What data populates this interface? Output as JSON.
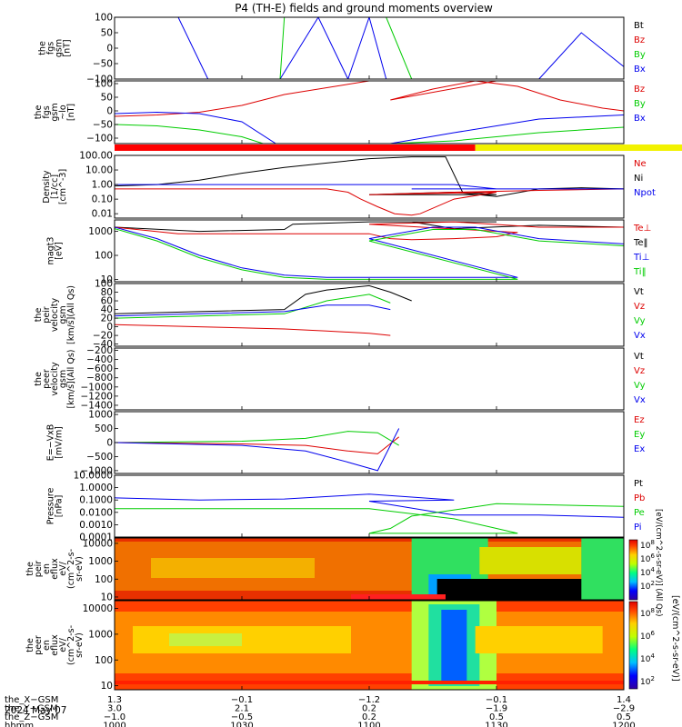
{
  "title": "P4 (TH-E) fields and ground moments overview",
  "date_label": "2024 May 07",
  "colors": {
    "black": "#000000",
    "red": "#dd0000",
    "green": "#00cc00",
    "blue": "#0000ee",
    "yellow": "#f2f200"
  },
  "panels": [
    {
      "id": "fgs_gsm",
      "ylabel": [
        "the",
        "fgs",
        "gsm",
        "[nT]"
      ],
      "yticks": [
        "100",
        "50",
        "0",
        "−50",
        "−100"
      ],
      "legend": [
        [
          "Bt",
          "black"
        ],
        [
          "Bz",
          "red"
        ],
        [
          "By",
          "green"
        ],
        [
          "Bx",
          "blue"
        ]
      ]
    },
    {
      "id": "fgs_gsm_lo",
      "ylabel": [
        "the",
        "fgs",
        "gsm",
        "~lo",
        "[nT]"
      ],
      "yticks": [
        "100",
        "50",
        "0",
        "−50",
        "−100"
      ],
      "legend": [
        [
          "Bz",
          "red"
        ],
        [
          "By",
          "green"
        ],
        [
          "Bx",
          "blue"
        ]
      ]
    },
    {
      "id": "density",
      "ylabel": [
        "Density",
        "[1/cc]",
        "[cm^-3]"
      ],
      "yticks": [
        "100.00",
        "10.00",
        "1.00",
        "0.10",
        "0.01"
      ],
      "legend": [
        [
          "Ne",
          "red"
        ],
        [
          "Ni",
          "black"
        ],
        [
          "Npot",
          "blue"
        ]
      ]
    },
    {
      "id": "temperature",
      "ylabel": [
        "magt3",
        "[eV]"
      ],
      "yticks": [
        "1000",
        "100",
        "10"
      ],
      "legend": [
        [
          "Te⊥",
          "red"
        ],
        [
          "Te‖",
          "black"
        ],
        [
          "Ti⊥",
          "blue"
        ],
        [
          "Ti‖",
          "green"
        ]
      ]
    },
    {
      "id": "peir_velocity",
      "ylabel": [
        "the",
        "peir",
        "velocity",
        "gsm",
        "[km/s](All Qs)"
      ],
      "yticks": [
        "100",
        "80",
        "60",
        "40",
        "20",
        "0",
        "−20",
        "−40"
      ],
      "legend": [
        [
          "Vt",
          "black"
        ],
        [
          "Vz",
          "red"
        ],
        [
          "Vy",
          "green"
        ],
        [
          "Vx",
          "blue"
        ]
      ]
    },
    {
      "id": "peer_velocity",
      "ylabel": [
        "the",
        "peer",
        "velocity",
        "gsm",
        "[km/s](All Qs)"
      ],
      "yticks": [
        "−200",
        "−400",
        "−600",
        "−800",
        "−1000",
        "−1200",
        "−1400"
      ],
      "legend": [
        [
          "Vt",
          "black"
        ],
        [
          "Vz",
          "red"
        ],
        [
          "Vy",
          "green"
        ],
        [
          "Vx",
          "blue"
        ]
      ]
    },
    {
      "id": "efield",
      "ylabel": [
        "E=−VxB",
        "[mV/m]"
      ],
      "yticks": [
        "1000",
        "500",
        "0",
        "−500",
        "−1000"
      ],
      "legend": [
        [
          "Ez",
          "red"
        ],
        [
          "Ey",
          "green"
        ],
        [
          "Ex",
          "blue"
        ]
      ]
    },
    {
      "id": "pressure",
      "ylabel": [
        "Pressure",
        "[nPa]"
      ],
      "yticks": [
        "10.0000",
        "1.0000",
        "0.1000",
        "0.0100",
        "0.0010",
        "0.0001"
      ],
      "legend": [
        [
          "Pt",
          "black"
        ],
        [
          "Pb",
          "red"
        ],
        [
          "Pe",
          "green"
        ],
        [
          "Pi",
          "blue"
        ]
      ]
    },
    {
      "id": "peir_eflux",
      "ylabel": [
        "the",
        "peir",
        "en",
        "eflux",
        "eV/",
        "(cm^2-s-",
        "sr-eV)"
      ],
      "yticks": [
        "10000",
        "1000",
        "100",
        "10"
      ],
      "legend": []
    },
    {
      "id": "peer_eflux",
      "ylabel": [
        "the",
        "peer",
        "en",
        "eflux",
        "eV/",
        "(cm^2-s-",
        "sr-eV)"
      ],
      "yticks": [
        "10000",
        "1000",
        "100",
        "10"
      ],
      "legend": []
    }
  ],
  "colorbar_ticks": [
    "10^8",
    "10^6",
    "10^4",
    "10^2"
  ],
  "colorbar_label": "[eV/(cm^2-s-sr-eV)]",
  "colorbar_label_upper": "[eV/(cm^2-s-sr-eV)] (All Qs)",
  "xaxis": {
    "row_labels": [
      "the_X−GSM",
      "the_Y−GSM",
      "the_Z−GSM",
      "hhmm"
    ],
    "columns": [
      [
        "1.3",
        "3.0",
        "−1.0",
        "1000"
      ],
      [
        "−0.1",
        "2.1",
        "−0.5",
        "1030"
      ],
      [
        "−1.2",
        "0.2",
        "0.2",
        "1100"
      ],
      [
        "−0.1",
        "−1.9",
        "0.5",
        "1130"
      ],
      [
        "1.4",
        "−2.9",
        "0.5",
        "1200"
      ]
    ]
  },
  "chart_data": {
    "type": "line",
    "title": "P4 (TH-E) fields and ground moments overview",
    "x": {
      "label": "hhmm",
      "ticks": [
        "1000",
        "1030",
        "1100",
        "1130",
        "1200"
      ],
      "range_hhmm": [
        "1000",
        "1200"
      ]
    },
    "panels": [
      {
        "id": "fgs_gsm",
        "yscale": "linear",
        "ylim": [
          -100,
          100
        ],
        "series": [
          {
            "name": "Bx",
            "x": [
              "1000",
              "1015",
              "1022",
              "1039",
              "1048",
              "1055",
              "1100",
              "1104",
              "1110",
              "1140",
              "1150",
              "1200"
            ],
            "y": [
              100,
              100,
              -100,
              -100,
              100,
              -100,
              100,
              -100,
              -100,
              -100,
              50,
              -60
            ]
          },
          {
            "name": "By",
            "x": [
              "1000",
              "1039",
              "1040",
              "1100",
              "1104",
              "1110"
            ],
            "y": [
              -100,
              -100,
              100,
              100,
              100,
              -100
            ]
          }
        ]
      },
      {
        "id": "fgs_gsm_lo",
        "yscale": "linear",
        "ylim": [
          -120,
          110
        ],
        "series": [
          {
            "name": "Bz",
            "x": [
              "1000",
              "1010",
              "1020",
              "1030",
              "1040",
              "1060",
              "1075",
              "1090",
              "1105",
              "1115",
              "1125",
              "1135",
              "1145",
              "1155",
              "1200"
            ],
            "y": [
              -20,
              -15,
              -5,
              20,
              60,
              110,
              110,
              110,
              40,
              80,
              110,
              90,
              40,
              10,
              0
            ]
          },
          {
            "name": "By",
            "x": [
              "1000",
              "1010",
              "1020",
              "1030",
              "1035",
              "1105",
              "1120",
              "1140",
              "1160",
              "1180",
              "1200"
            ],
            "y": [
              -50,
              -55,
              -70,
              -95,
              -120,
              -120,
              -110,
              -80,
              -60,
              -55,
              -50
            ]
          },
          {
            "name": "Bx",
            "x": [
              "1000",
              "1010",
              "1020",
              "1030",
              "1038",
              "1105",
              "1120",
              "1140",
              "1160",
              "1180",
              "1200"
            ],
            "y": [
              -10,
              -5,
              -10,
              -40,
              -120,
              -120,
              -80,
              -30,
              -15,
              -10,
              -5
            ]
          }
        ]
      },
      {
        "id": "density",
        "yscale": "log",
        "ylim": [
          0.005,
          100
        ],
        "series": [
          {
            "name": "Ni",
            "x": [
              "1000",
              "1010",
              "1020",
              "1030",
              "1040",
              "1050",
              "1060",
              "1070",
              "1078",
              "1082",
              "1090",
              "1100",
              "1110",
              "1120",
              "1130",
              "1140",
              "1150",
              "1160",
              "1170",
              "1180",
              "1190",
              "1200"
            ],
            "y": [
              0.8,
              1,
              2,
              6,
              15,
              30,
              60,
              80,
              80,
              0.3,
              0.2,
              0.2,
              0.25,
              0.3,
              0.15,
              0.5,
              0.6,
              0.5,
              0.4,
              0.4,
              0.5,
              0.6
            ]
          },
          {
            "name": "Ne",
            "x": [
              "1000",
              "1010",
              "1030",
              "1050",
              "1055",
              "1058",
              "1062",
              "1066",
              "1070",
              "1072",
              "1080",
              "1090",
              "1100",
              "1120",
              "1140",
              "1160",
              "1180",
              "1200"
            ],
            "y": [
              0.5,
              0.5,
              0.5,
              0.5,
              0.3,
              0.1,
              0.03,
              0.01,
              0.008,
              0.01,
              0.1,
              0.3,
              0.2,
              0.3,
              0.4,
              0.5,
              0.5,
              0.5
            ]
          },
          {
            "name": "Npot",
            "x": [
              "1000",
              "1010",
              "1030",
              "1040",
              "1050",
              "1055",
              "1080",
              "1090",
              "1110",
              "1130",
              "1140",
              "1160",
              "1180",
              "1200"
            ],
            "y": [
              1,
              1,
              1,
              1,
              1,
              1,
              1,
              0.5,
              0.5,
              0.5,
              0.5,
              0.5,
              0.5,
              0.4
            ]
          }
        ]
      },
      {
        "id": "temperature",
        "yscale": "log",
        "ylim": [
          8,
          3000
        ],
        "series": [
          {
            "name": "Te‖",
            "x": [
              "1000",
              "1020",
              "1040",
              "1042",
              "1060",
              "1075",
              "1090",
              "1100",
              "1110",
              "1120",
              "1140",
              "1160",
              "1180",
              "1200"
            ],
            "y": [
              1500,
              1000,
              1200,
              2000,
              2500,
              2500,
              2500,
              2500,
              2500,
              1300,
              1800,
              1500,
              1500,
              1200
            ]
          },
          {
            "name": "Te⊥",
            "x": [
              "1000",
              "1015",
              "1030",
              "1060",
              "1065",
              "1070",
              "1080",
              "1090",
              "1095",
              "1100",
              "1120",
              "1140",
              "1160",
              "1180",
              "1200"
            ],
            "y": [
              1500,
              800,
              800,
              800,
              500,
              450,
              500,
              600,
              900,
              2000,
              2500,
              1500,
              1500,
              1500,
              1000
            ]
          },
          {
            "name": "Ti⊥",
            "x": [
              "1000",
              "1010",
              "1020",
              "1030",
              "1040",
              "1050",
              "1060",
              "1075",
              "1090",
              "1095",
              "1100",
              "1115",
              "1125",
              "1140",
              "1160",
              "1180",
              "1200"
            ],
            "y": [
              1500,
              500,
              100,
              30,
              15,
              12,
              12,
              12,
              12,
              12,
              500,
              1500,
              1500,
              500,
              300,
              800,
              1200
            ]
          },
          {
            "name": "Ti‖",
            "x": [
              "1000",
              "1010",
              "1020",
              "1030",
              "1040",
              "1050",
              "1060",
              "1075",
              "1090",
              "1095",
              "1100",
              "1115",
              "1125",
              "1140",
              "1160",
              "1180",
              "1200"
            ],
            "y": [
              1300,
              400,
              80,
              25,
              12,
              10,
              10,
              10,
              10,
              10,
              400,
              1200,
              1200,
              400,
              250,
              700,
              1000
            ]
          }
        ]
      },
      {
        "id": "peir_velocity",
        "yscale": "linear",
        "ylim": [
          -45,
          100
        ],
        "series": [
          {
            "name": "Vt",
            "x": [
              "1000",
              "1020",
              "1040",
              "1045",
              "1050",
              "1060",
              "1065",
              "1070"
            ],
            "y": [
              30,
              35,
              40,
              75,
              85,
              95,
              80,
              60
            ]
          },
          {
            "name": "Vz",
            "x": [
              "1000",
              "1020",
              "1040",
              "1050",
              "1060",
              "1065"
            ],
            "y": [
              5,
              0,
              -5,
              -10,
              -15,
              -20
            ]
          },
          {
            "name": "Vy",
            "x": [
              "1000",
              "1020",
              "1040",
              "1050",
              "1060",
              "1065"
            ],
            "y": [
              20,
              25,
              30,
              60,
              75,
              55
            ]
          },
          {
            "name": "Vx",
            "x": [
              "1000",
              "1020",
              "1040",
              "1050",
              "1060",
              "1065"
            ],
            "y": [
              25,
              30,
              35,
              50,
              50,
              40
            ]
          }
        ]
      },
      {
        "id": "peer_velocity",
        "yscale": "linear",
        "ylim": [
          -1500,
          -150
        ],
        "series": []
      },
      {
        "id": "efield",
        "yscale": "linear",
        "ylim": [
          -1100,
          1100
        ],
        "series": [
          {
            "name": "Ey",
            "x": [
              "1000",
              "1030",
              "1045",
              "1055",
              "1062",
              "1067"
            ],
            "y": [
              0,
              50,
              150,
              400,
              350,
              -100
            ]
          },
          {
            "name": "Ez",
            "x": [
              "1000",
              "1030",
              "1045",
              "1055",
              "1062",
              "1067"
            ],
            "y": [
              0,
              -50,
              -100,
              -300,
              -400,
              200
            ]
          },
          {
            "name": "Ex",
            "x": [
              "1000",
              "1030",
              "1045",
              "1055",
              "1062",
              "1067"
            ],
            "y": [
              0,
              -100,
              -300,
              -700,
              -1000,
              500
            ]
          }
        ]
      },
      {
        "id": "pressure",
        "yscale": "log",
        "ylim": [
          0.0001,
          10
        ],
        "series": [
          {
            "name": "Pi",
            "x": [
              "1000",
              "1020",
              "1040",
              "1060",
              "1080",
              "1100",
              "1120",
              "1140",
              "1160",
              "1180",
              "1200"
            ],
            "y": [
              0.15,
              0.1,
              0.12,
              0.3,
              0.1,
              0.08,
              0.006,
              0.006,
              0.004,
              0.003,
              0.1
            ]
          },
          {
            "name": "Pe",
            "x": [
              "1000",
              "1030",
              "1060",
              "1080",
              "1090",
              "1095",
              "1100",
              "1105",
              "1110",
              "1130",
              "1160",
              "1200"
            ],
            "y": [
              0.02,
              0.02,
              0.02,
              0.003,
              0.0005,
              0.0002,
              0.0002,
              0.0005,
              0.005,
              0.05,
              0.03,
              0.02
            ]
          }
        ]
      }
    ],
    "spectrograms": [
      {
        "id": "peir_eflux",
        "yscale": "log",
        "ylim": [
          7,
          20000
        ],
        "energy_ticks": [
          10,
          100,
          1000,
          10000
        ]
      },
      {
        "id": "peer_eflux",
        "yscale": "log",
        "ylim": [
          7,
          20000
        ],
        "energy_ticks": [
          10,
          100,
          1000,
          10000
        ]
      }
    ],
    "colorbar": {
      "scale": "log",
      "ticks": [
        "10^8",
        "10^6",
        "10^4",
        "10^2"
      ]
    }
  }
}
